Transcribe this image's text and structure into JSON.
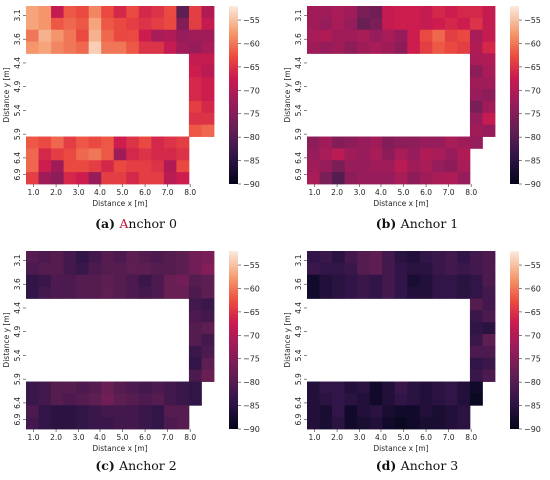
{
  "colors": {
    "highlight_letter": "#c0143c",
    "cmap_low": "#03051a",
    "cmap_high": "#faebdd"
  },
  "chart_data": [
    {
      "type": "heatmap",
      "caption": {
        "label": "(a)",
        "text": "Anchor 0"
      },
      "xlabel": "Distance x [m]",
      "ylabel": "Distance y [m]",
      "x_tick_labels": [
        "1.0",
        "2.0",
        "3.0",
        "4.0",
        "5.0",
        "6.0",
        "7.0",
        "8.0"
      ],
      "y_tick_labels": [
        "3.1",
        "3.6",
        "4.4",
        "4.9",
        "5.4",
        "5.9",
        "6.4",
        "6.9"
      ],
      "colorbar": {
        "vmin": -90,
        "vmax": -52,
        "ticks": [
          "-55",
          "-60",
          "-65",
          "-70",
          "-75",
          "-80",
          "-85",
          "-90"
        ]
      },
      "cols": 15,
      "rows": 15,
      "cells": [
        [
          -57,
          -58,
          -68,
          -62,
          -63,
          -59,
          -63,
          -66,
          -63,
          -66,
          -65,
          -63,
          -79,
          -64,
          -70
        ],
        [
          -57,
          -58,
          -62,
          -61,
          -62,
          -57,
          -62,
          -63,
          -64,
          -65,
          -64,
          -63,
          -75,
          -64,
          -68
        ],
        [
          -60,
          -56,
          -58,
          -60,
          -63,
          -56,
          -61,
          -63,
          -63,
          -67,
          -71,
          -70,
          -73,
          -72,
          -72
        ],
        [
          -58,
          -57,
          -59,
          -60,
          -61,
          -54,
          -60,
          -60,
          -62,
          -65,
          -65,
          -68,
          -72,
          -73,
          -71
        ],
        [
          null,
          null,
          null,
          null,
          null,
          null,
          null,
          null,
          null,
          null,
          null,
          null,
          null,
          -68,
          -68
        ],
        [
          null,
          null,
          null,
          null,
          null,
          null,
          null,
          null,
          null,
          null,
          null,
          null,
          null,
          -67,
          -69
        ],
        [
          null,
          null,
          null,
          null,
          null,
          null,
          null,
          null,
          null,
          null,
          null,
          null,
          null,
          -66,
          -67
        ],
        [
          null,
          null,
          null,
          null,
          null,
          null,
          null,
          null,
          null,
          null,
          null,
          null,
          null,
          -66,
          -67
        ],
        [
          null,
          null,
          null,
          null,
          null,
          null,
          null,
          null,
          null,
          null,
          null,
          null,
          null,
          -64,
          -66
        ],
        [
          null,
          null,
          null,
          null,
          null,
          null,
          null,
          null,
          null,
          null,
          null,
          null,
          null,
          -65,
          -65
        ],
        [
          null,
          null,
          null,
          null,
          null,
          null,
          null,
          null,
          null,
          null,
          null,
          null,
          null,
          -62,
          -61
        ],
        [
          -62,
          -63,
          -61,
          -64,
          -62,
          -63,
          -62,
          -67,
          -65,
          -63,
          -66,
          -65,
          -64,
          null,
          null
        ],
        [
          -61,
          -66,
          -64,
          -63,
          -61,
          -60,
          -62,
          -72,
          -66,
          -65,
          -66,
          -66,
          -65,
          null,
          null
        ],
        [
          -61,
          -67,
          -72,
          -63,
          -63,
          -64,
          -66,
          -63,
          -64,
          -64,
          -65,
          -70,
          -63,
          null,
          null
        ],
        [
          -64,
          -72,
          -74,
          -66,
          -67,
          -73,
          -64,
          -64,
          -66,
          -64,
          -64,
          -69,
          -67,
          null,
          null
        ]
      ]
    },
    {
      "type": "heatmap",
      "caption": {
        "label": "(b)",
        "text": "Anchor 1"
      },
      "xlabel": "Distance x [m]",
      "ylabel": "Distance y [m]",
      "x_tick_labels": [
        "1.0",
        "2.0",
        "3.0",
        "4.0",
        "5.0",
        "6.0",
        "7.0",
        "8.0"
      ],
      "y_tick_labels": [
        "3.1",
        "3.6",
        "4.4",
        "4.9",
        "5.4",
        "5.9",
        "6.4",
        "6.9"
      ],
      "colorbar": {
        "vmin": -90,
        "vmax": -52,
        "ticks": [
          "-55",
          "-60",
          "-65",
          "-70",
          "-75",
          "-80",
          "-85",
          "-90"
        ]
      },
      "cols": 15,
      "rows": 15,
      "cells": [
        [
          -72,
          -72,
          -71,
          -72,
          -76,
          -77,
          -68,
          -67,
          -67,
          -68,
          -66,
          -67,
          -66,
          -66,
          -68
        ],
        [
          -72,
          -73,
          -71,
          -73,
          -78,
          -76,
          -68,
          -67,
          -67,
          -68,
          -67,
          -66,
          -67,
          -65,
          -68
        ],
        [
          -71,
          -70,
          -72,
          -72,
          -71,
          -73,
          -71,
          -73,
          -67,
          -63,
          -61,
          -64,
          -63,
          -71,
          -68
        ],
        [
          -72,
          -73,
          -72,
          -74,
          -72,
          -71,
          -72,
          -74,
          -67,
          -64,
          -62,
          -63,
          -64,
          -70,
          -66
        ],
        [
          null,
          null,
          null,
          null,
          null,
          null,
          null,
          null,
          null,
          null,
          null,
          null,
          null,
          -71,
          -70
        ],
        [
          null,
          null,
          null,
          null,
          null,
          null,
          null,
          null,
          null,
          null,
          null,
          null,
          null,
          -74,
          -71
        ],
        [
          null,
          null,
          null,
          null,
          null,
          null,
          null,
          null,
          null,
          null,
          null,
          null,
          null,
          -72,
          -72
        ],
        [
          null,
          null,
          null,
          null,
          null,
          null,
          null,
          null,
          null,
          null,
          null,
          null,
          null,
          -73,
          -74
        ],
        [
          null,
          null,
          null,
          null,
          null,
          null,
          null,
          null,
          null,
          null,
          null,
          null,
          null,
          -76,
          -72
        ],
        [
          null,
          null,
          null,
          null,
          null,
          null,
          null,
          null,
          null,
          null,
          null,
          null,
          null,
          -73,
          -68
        ],
        [
          null,
          null,
          null,
          null,
          null,
          null,
          null,
          null,
          null,
          null,
          null,
          null,
          null,
          -72,
          -73
        ],
        [
          -74,
          -72,
          -75,
          -74,
          -73,
          -72,
          -75,
          -74,
          -74,
          -73,
          -73,
          -71,
          -72,
          -73,
          null
        ],
        [
          -73,
          -71,
          -69,
          -72,
          -73,
          -71,
          -74,
          -71,
          -73,
          -70,
          -71,
          -73,
          -70,
          null,
          null
        ],
        [
          -72,
          -73,
          -76,
          -73,
          -73,
          -72,
          -72,
          -69,
          -72,
          -71,
          -73,
          -74,
          -71,
          null,
          null
        ],
        [
          -71,
          -76,
          -80,
          -74,
          -73,
          -73,
          -73,
          -71,
          -74,
          -72,
          -71,
          -70,
          -73,
          null,
          null
        ]
      ]
    },
    {
      "type": "heatmap",
      "caption": {
        "label": "(c)",
        "text": "Anchor 2"
      },
      "xlabel": "Distance x [m]",
      "ylabel": "Distance y [m]",
      "x_tick_labels": [
        "1.0",
        "2.0",
        "3.0",
        "4.0",
        "5.0",
        "6.0",
        "7.0",
        "8.0"
      ],
      "y_tick_labels": [
        "3.1",
        "3.6",
        "4.4",
        "4.9",
        "5.4",
        "5.9",
        "6.4",
        "6.9"
      ],
      "colorbar": {
        "vmin": -90,
        "vmax": -52,
        "ticks": [
          "-55",
          "-60",
          "-65",
          "-70",
          "-75",
          "-80",
          "-85",
          "-90"
        ]
      },
      "cols": 15,
      "rows": 15,
      "cells": [
        [
          -80,
          -81,
          -80,
          -82,
          -84,
          -82,
          -80,
          -81,
          -79,
          -80,
          -81,
          -80,
          -79,
          -77,
          -76
        ],
        [
          -81,
          -80,
          -80,
          -82,
          -83,
          -81,
          -80,
          -80,
          -79,
          -79,
          -80,
          -80,
          -79,
          -77,
          -75
        ],
        [
          -84,
          -83,
          -81,
          -81,
          -80,
          -80,
          -79,
          -80,
          -81,
          -83,
          -81,
          -78,
          -77,
          -80,
          -79
        ],
        [
          -84,
          -82,
          -81,
          -81,
          -80,
          -80,
          -79,
          -80,
          -81,
          -82,
          -81,
          -78,
          -78,
          -81,
          -79
        ],
        [
          null,
          null,
          null,
          null,
          null,
          null,
          null,
          null,
          null,
          null,
          null,
          null,
          null,
          -82,
          -83
        ],
        [
          null,
          null,
          null,
          null,
          null,
          null,
          null,
          null,
          null,
          null,
          null,
          null,
          null,
          -81,
          -82
        ],
        [
          null,
          null,
          null,
          null,
          null,
          null,
          null,
          null,
          null,
          null,
          null,
          null,
          null,
          -80,
          -79
        ],
        [
          null,
          null,
          null,
          null,
          null,
          null,
          null,
          null,
          null,
          null,
          null,
          null,
          null,
          -80,
          -82
        ],
        [
          null,
          null,
          null,
          null,
          null,
          null,
          null,
          null,
          null,
          null,
          null,
          null,
          null,
          -83,
          -81
        ],
        [
          null,
          null,
          null,
          null,
          null,
          null,
          null,
          null,
          null,
          null,
          null,
          null,
          null,
          -84,
          -79
        ],
        [
          null,
          null,
          null,
          null,
          null,
          null,
          null,
          null,
          null,
          null,
          null,
          null,
          null,
          -81,
          -78
        ],
        [
          -83,
          -82,
          -80,
          -80,
          -81,
          -80,
          -78,
          -80,
          -81,
          -82,
          -81,
          -82,
          -83,
          -84,
          null
        ],
        [
          -83,
          -82,
          -80,
          -81,
          -80,
          -79,
          -77,
          -79,
          -80,
          -81,
          -80,
          -82,
          -83,
          -84,
          null
        ],
        [
          -81,
          -84,
          -85,
          -85,
          -84,
          -83,
          -82,
          -82,
          -82,
          -83,
          -84,
          -80,
          -80,
          null,
          null
        ],
        [
          -82,
          -84,
          -85,
          -85,
          -84,
          -83,
          -83,
          -82,
          -82,
          -83,
          -84,
          -81,
          -80,
          null,
          null
        ]
      ]
    },
    {
      "type": "heatmap",
      "caption": {
        "label": "(d)",
        "text": "Anchor 3"
      },
      "xlabel": "Distance x [m]",
      "ylabel": "Distance y [m]",
      "x_tick_labels": [
        "1.0",
        "2.0",
        "3.0",
        "4.0",
        "5.0",
        "6.0",
        "7.0",
        "8.0"
      ],
      "y_tick_labels": [
        "3.1",
        "3.6",
        "4.4",
        "4.9",
        "5.4",
        "5.9",
        "6.4",
        "6.9"
      ],
      "colorbar": {
        "vmin": -90,
        "vmax": -52,
        "ticks": [
          "-55",
          "-60",
          "-65",
          "-70",
          "-75",
          "-80",
          "-85",
          "-90"
        ]
      },
      "cols": 15,
      "rows": 15,
      "cells": [
        [
          -84,
          -83,
          -85,
          -82,
          -80,
          -79,
          -82,
          -85,
          -86,
          -84,
          -83,
          -82,
          -84,
          -82,
          -81
        ],
        [
          -83,
          -84,
          -84,
          -83,
          -80,
          -79,
          -82,
          -84,
          -85,
          -85,
          -83,
          -82,
          -83,
          -82,
          -81
        ],
        [
          -88,
          -86,
          -85,
          -84,
          -83,
          -84,
          -82,
          -84,
          -87,
          -86,
          -84,
          -84,
          -85,
          -84,
          -81
        ],
        [
          -88,
          -86,
          -85,
          -84,
          -83,
          -84,
          -82,
          -84,
          -86,
          -86,
          -84,
          -84,
          -85,
          -84,
          -82
        ],
        [
          null,
          null,
          null,
          null,
          null,
          null,
          null,
          null,
          null,
          null,
          null,
          null,
          null,
          -80,
          -82
        ],
        [
          null,
          null,
          null,
          null,
          null,
          null,
          null,
          null,
          null,
          null,
          null,
          null,
          null,
          -83,
          -81
        ],
        [
          null,
          null,
          null,
          null,
          null,
          null,
          null,
          null,
          null,
          null,
          null,
          null,
          null,
          -84,
          -85
        ],
        [
          null,
          null,
          null,
          null,
          null,
          null,
          null,
          null,
          null,
          null,
          null,
          null,
          null,
          -83,
          -79
        ],
        [
          null,
          null,
          null,
          null,
          null,
          null,
          null,
          null,
          null,
          null,
          null,
          null,
          null,
          -81,
          -81
        ],
        [
          null,
          null,
          null,
          null,
          null,
          null,
          null,
          null,
          null,
          null,
          null,
          null,
          null,
          -84,
          -83
        ],
        [
          null,
          null,
          null,
          null,
          null,
          null,
          null,
          null,
          null,
          null,
          null,
          null,
          null,
          -83,
          -81
        ],
        [
          -86,
          -84,
          -84,
          -86,
          -85,
          -88,
          -86,
          -83,
          -85,
          -86,
          -85,
          -84,
          -86,
          -88,
          null
        ],
        [
          -86,
          -85,
          -84,
          -85,
          -86,
          -88,
          -86,
          -84,
          -85,
          -86,
          -85,
          -84,
          -86,
          -89,
          null
        ],
        [
          -86,
          -87,
          -84,
          -88,
          -86,
          -85,
          -87,
          -88,
          -88,
          -86,
          -87,
          -86,
          -85,
          null,
          null
        ],
        [
          -86,
          -87,
          -85,
          -88,
          -87,
          -86,
          -88,
          -89,
          -88,
          -87,
          -87,
          -86,
          -85,
          null,
          null
        ]
      ]
    }
  ]
}
